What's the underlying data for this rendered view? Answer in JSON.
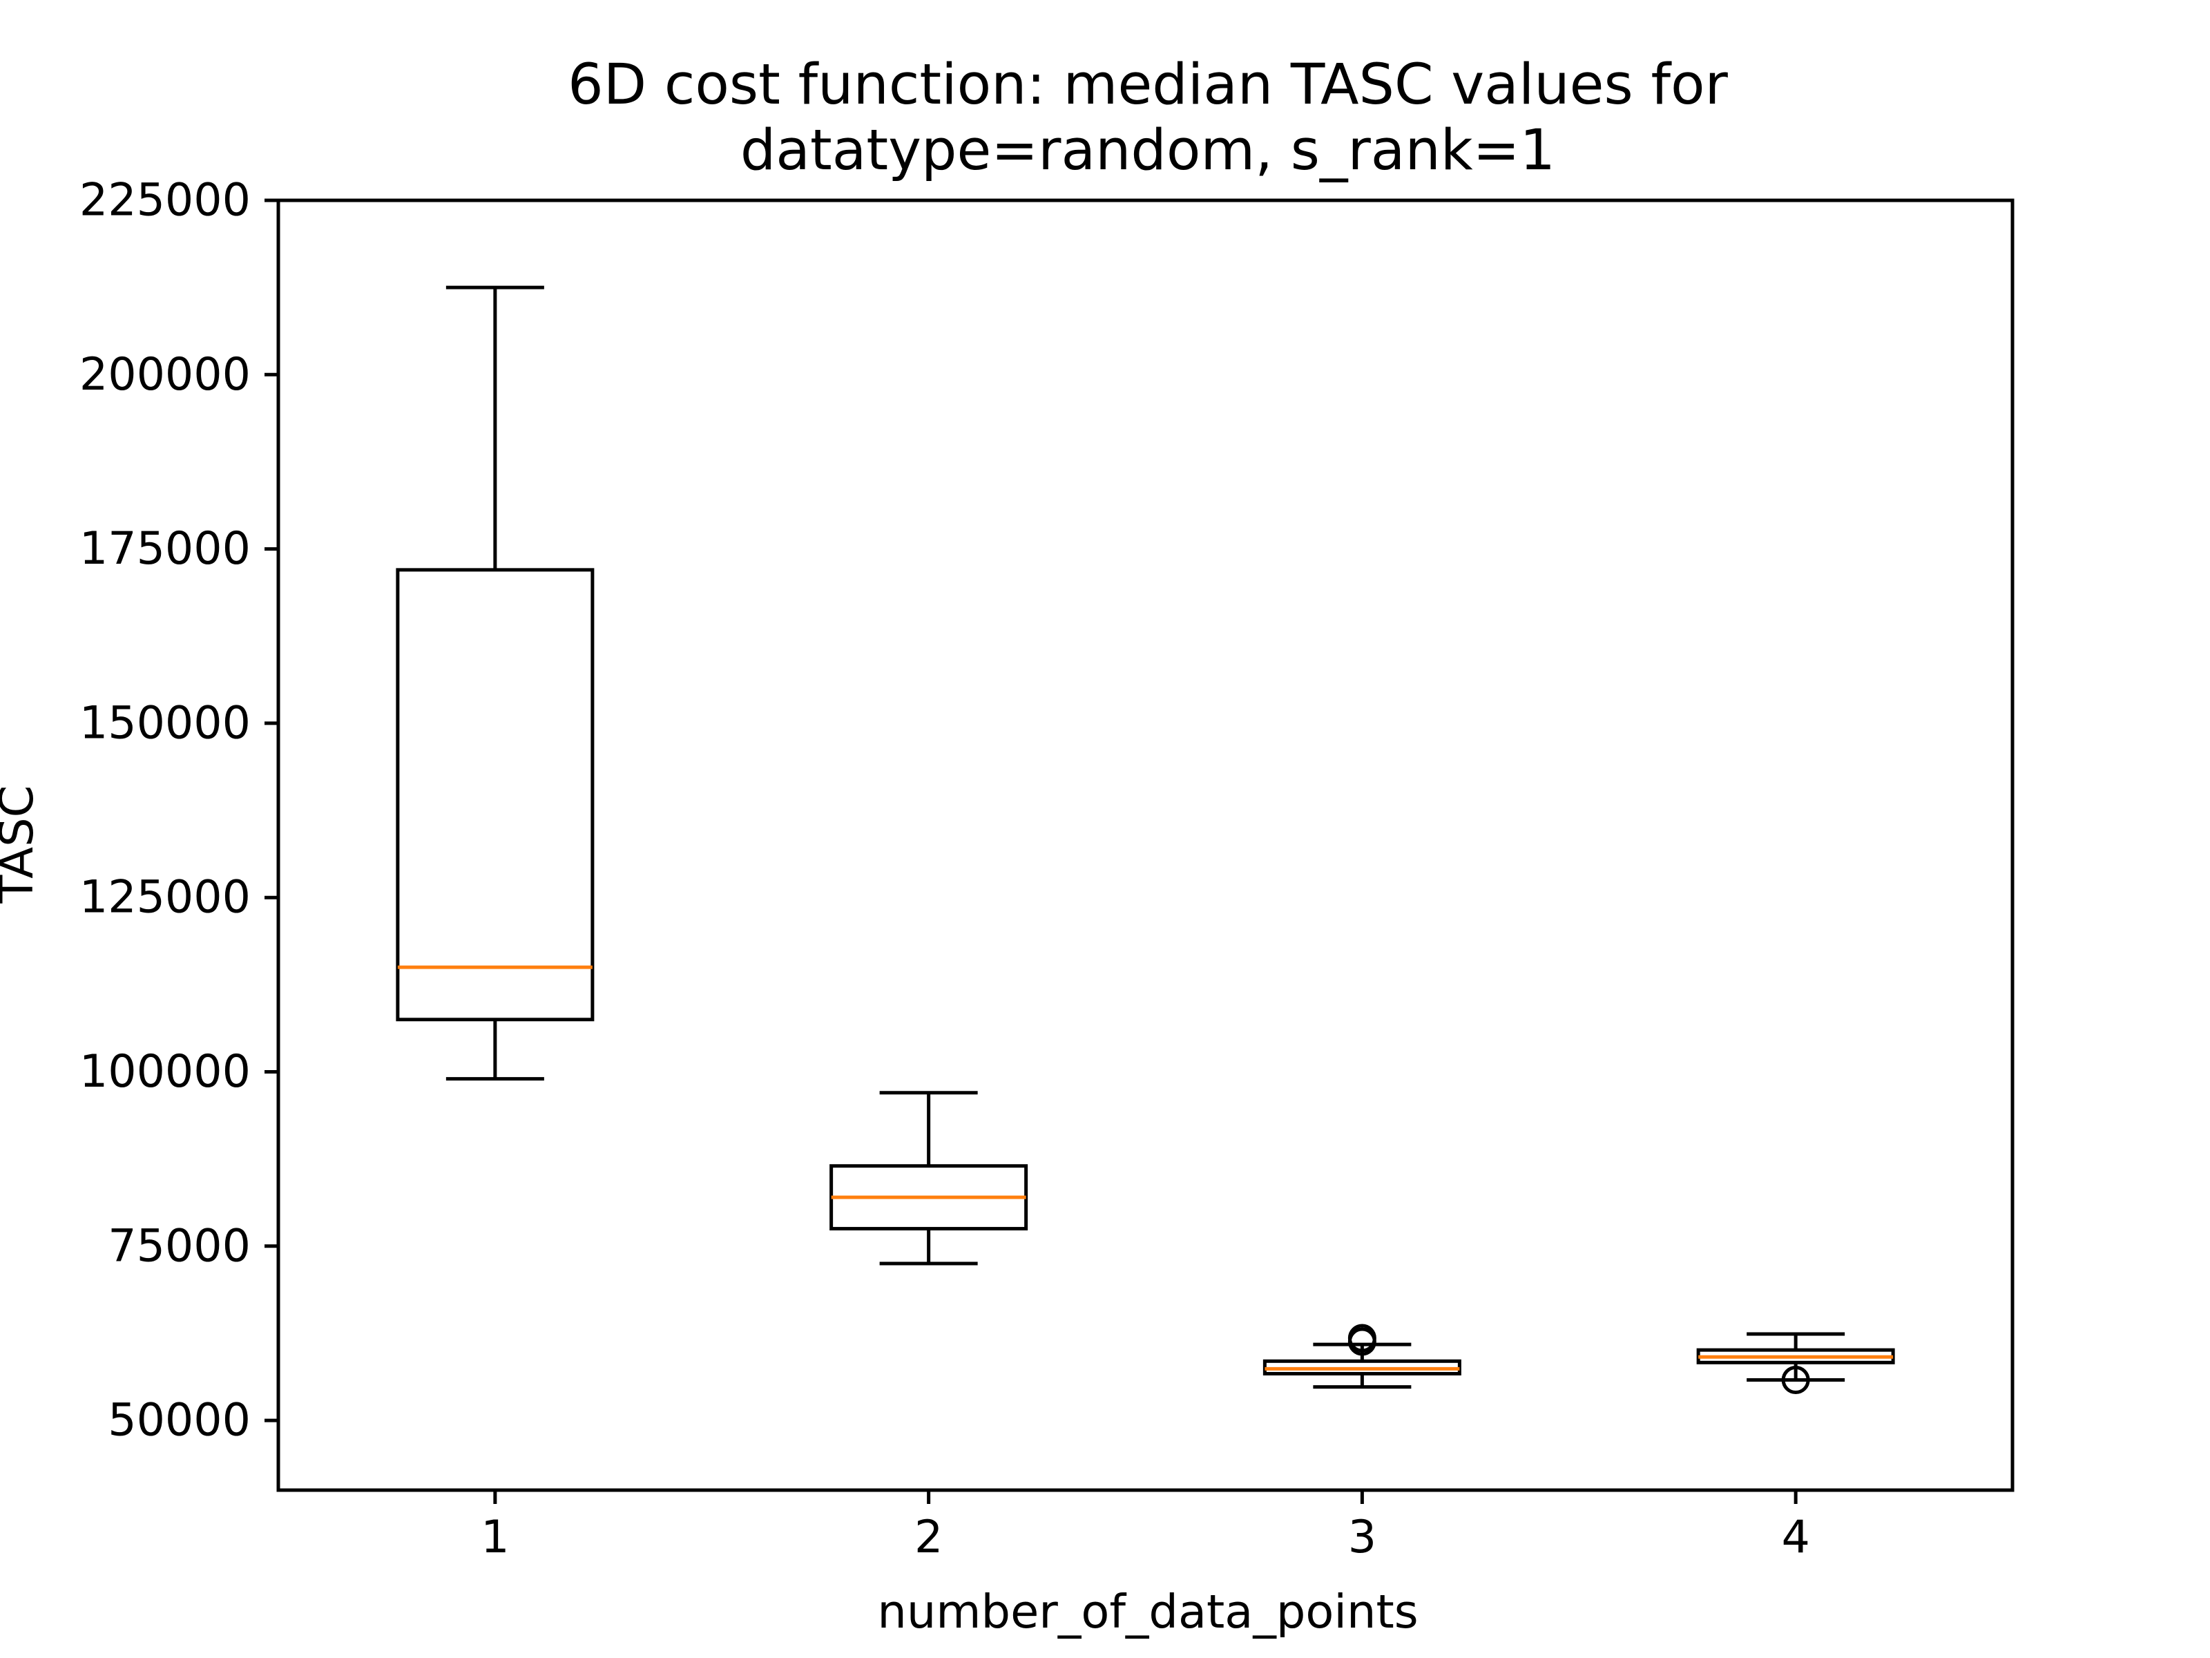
{
  "chart_data": {
    "type": "box",
    "title_lines": [
      "6D cost function: median TASC values for",
      "datatype=random, s_rank=1"
    ],
    "xlabel": "number_of_data_points",
    "ylabel": "TASC",
    "categories": [
      "1",
      "2",
      "3",
      "4"
    ],
    "ylim": [
      40000,
      225000
    ],
    "yticks": [
      50000,
      75000,
      100000,
      125000,
      150000,
      175000,
      200000,
      225000
    ],
    "ytick_labels": [
      "50000",
      "75000",
      "100000",
      "125000",
      "150000",
      "175000",
      "200000",
      "225000"
    ],
    "boxes": [
      {
        "category": "1",
        "whisker_low": 99000,
        "q1": 107500,
        "median": 115000,
        "q3": 172000,
        "whisker_high": 212500,
        "outliers": []
      },
      {
        "category": "2",
        "whisker_low": 72500,
        "q1": 77500,
        "median": 82000,
        "q3": 86500,
        "whisker_high": 97000,
        "outliers": []
      },
      {
        "category": "3",
        "whisker_low": 54800,
        "q1": 56700,
        "median": 57400,
        "q3": 58500,
        "whisker_high": 60900,
        "outliers": [
          61300,
          61800
        ]
      },
      {
        "category": "4",
        "whisker_low": 55800,
        "q1": 58300,
        "median": 59100,
        "q3": 60100,
        "whisker_high": 62400,
        "outliers": [
          55800
        ]
      }
    ],
    "colors": {
      "box": "#000000",
      "median": "#ff7f0e",
      "axes": "#000000"
    },
    "grid": false,
    "legend": "none"
  }
}
